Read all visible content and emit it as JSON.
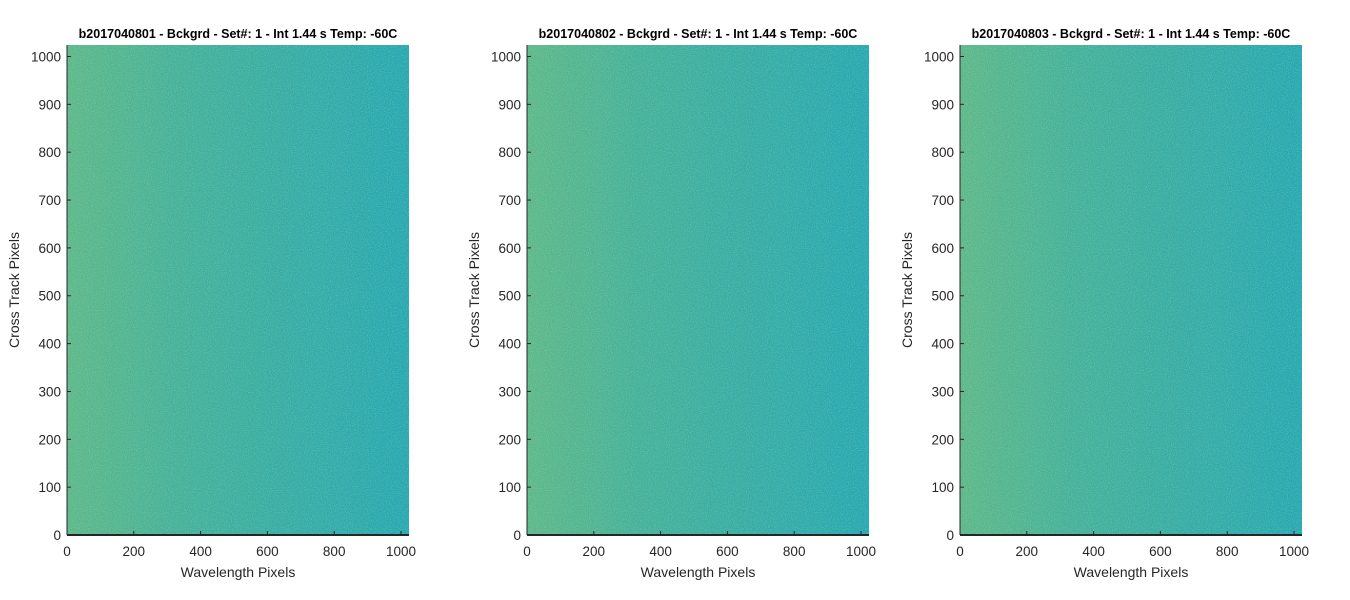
{
  "chart_data": [
    {
      "type": "heatmap",
      "title": "b2017040801 - Bckgrd - Set#: 1 - Int 1.44 s Temp: -60C",
      "xlabel": "Wavelength Pixels",
      "ylabel": "Cross Track Pixels",
      "xlim": [
        0,
        1024
      ],
      "ylim": [
        0,
        1024
      ],
      "xticks": [
        0,
        200,
        400,
        600,
        800,
        1000
      ],
      "yticks": [
        0,
        100,
        200,
        300,
        400,
        500,
        600,
        700,
        800,
        900,
        1000
      ],
      "grid": false,
      "colormap": "parula",
      "field": "noise background, yellow-green toward low wavelength pixels, teal-blue toward high wavelength pixels"
    },
    {
      "type": "heatmap",
      "title": "b2017040802 - Bckgrd - Set#: 1 - Int 1.44 s Temp: -60C",
      "xlabel": "Wavelength Pixels",
      "ylabel": "Cross Track Pixels",
      "xlim": [
        0,
        1024
      ],
      "ylim": [
        0,
        1024
      ],
      "xticks": [
        0,
        200,
        400,
        600,
        800,
        1000
      ],
      "yticks": [
        0,
        100,
        200,
        300,
        400,
        500,
        600,
        700,
        800,
        900,
        1000
      ],
      "grid": false,
      "colormap": "parula",
      "field": "noise background, yellow-green toward low wavelength pixels, teal-blue toward high wavelength pixels"
    },
    {
      "type": "heatmap",
      "title": "b2017040803 - Bckgrd - Set#: 1 - Int 1.44 s Temp: -60C",
      "xlabel": "Wavelength Pixels",
      "ylabel": "Cross Track Pixels",
      "xlim": [
        0,
        1024
      ],
      "ylim": [
        0,
        1024
      ],
      "xticks": [
        0,
        200,
        400,
        600,
        800,
        1000
      ],
      "yticks": [
        0,
        100,
        200,
        300,
        400,
        500,
        600,
        700,
        800,
        900,
        1000
      ],
      "grid": false,
      "colormap": "parula",
      "field": "noise background, yellow-green toward low wavelength pixels, teal-blue toward high wavelength pixels"
    }
  ],
  "colors": {
    "field_warm": "#5ab88a",
    "field_cool": "#22a7b4",
    "axis": "#262626"
  }
}
